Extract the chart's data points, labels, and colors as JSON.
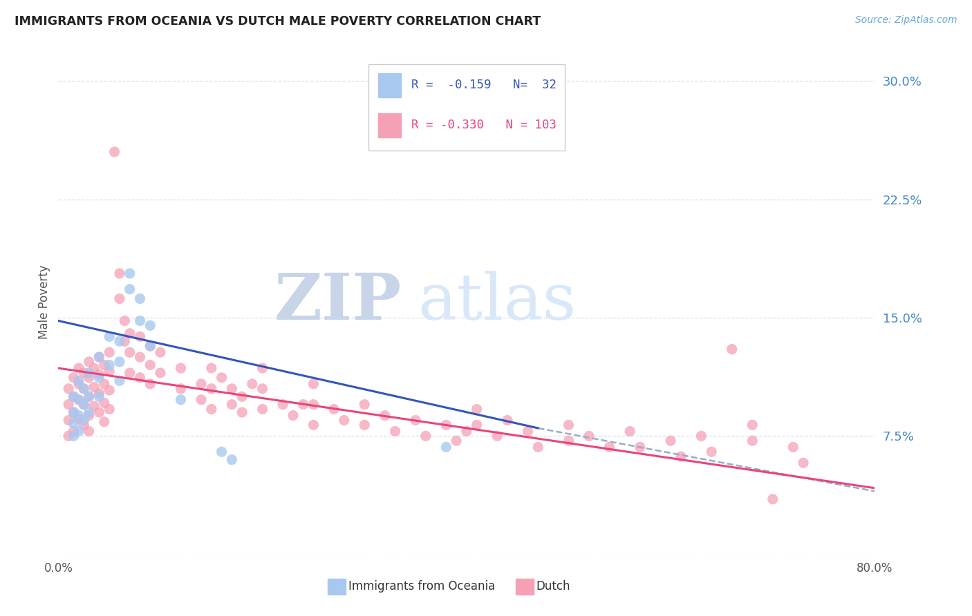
{
  "title": "IMMIGRANTS FROM OCEANIA VS DUTCH MALE POVERTY CORRELATION CHART",
  "source": "Source: ZipAtlas.com",
  "ylabel": "Male Poverty",
  "yticks": [
    0.0,
    0.075,
    0.15,
    0.225,
    0.3
  ],
  "ytick_labels": [
    "",
    "7.5%",
    "15.0%",
    "22.5%",
    "30.0%"
  ],
  "xlim": [
    0.0,
    0.8
  ],
  "ylim": [
    0.0,
    0.32
  ],
  "color_blue": "#A8C8F0",
  "color_pink": "#F5A0B5",
  "line_blue": "#3355BB",
  "line_pink": "#E8457A",
  "line_dashed_color": "#99AACC",
  "watermark": "ZIPatlas",
  "watermark_color": "#D8E4F5",
  "blue_line_x": [
    0.0,
    0.47
  ],
  "blue_line_y": [
    0.148,
    0.08
  ],
  "pink_line_x": [
    0.0,
    0.8
  ],
  "pink_line_y": [
    0.118,
    0.042
  ],
  "dashed_line_x": [
    0.47,
    0.8
  ],
  "dashed_line_y": [
    0.08,
    0.04
  ],
  "scatter_blue": [
    [
      0.015,
      0.1
    ],
    [
      0.015,
      0.09
    ],
    [
      0.015,
      0.083
    ],
    [
      0.015,
      0.075
    ],
    [
      0.02,
      0.11
    ],
    [
      0.02,
      0.098
    ],
    [
      0.02,
      0.088
    ],
    [
      0.02,
      0.078
    ],
    [
      0.025,
      0.105
    ],
    [
      0.025,
      0.095
    ],
    [
      0.025,
      0.085
    ],
    [
      0.03,
      0.115
    ],
    [
      0.03,
      0.1
    ],
    [
      0.03,
      0.09
    ],
    [
      0.04,
      0.125
    ],
    [
      0.04,
      0.112
    ],
    [
      0.04,
      0.1
    ],
    [
      0.05,
      0.138
    ],
    [
      0.05,
      0.12
    ],
    [
      0.06,
      0.135
    ],
    [
      0.06,
      0.122
    ],
    [
      0.06,
      0.11
    ],
    [
      0.07,
      0.178
    ],
    [
      0.07,
      0.168
    ],
    [
      0.08,
      0.162
    ],
    [
      0.08,
      0.148
    ],
    [
      0.09,
      0.145
    ],
    [
      0.09,
      0.132
    ],
    [
      0.12,
      0.098
    ],
    [
      0.16,
      0.065
    ],
    [
      0.17,
      0.06
    ],
    [
      0.38,
      0.068
    ]
  ],
  "scatter_pink": [
    [
      0.01,
      0.105
    ],
    [
      0.01,
      0.095
    ],
    [
      0.01,
      0.085
    ],
    [
      0.01,
      0.075
    ],
    [
      0.015,
      0.112
    ],
    [
      0.015,
      0.1
    ],
    [
      0.015,
      0.09
    ],
    [
      0.015,
      0.078
    ],
    [
      0.02,
      0.118
    ],
    [
      0.02,
      0.108
    ],
    [
      0.02,
      0.098
    ],
    [
      0.02,
      0.086
    ],
    [
      0.025,
      0.115
    ],
    [
      0.025,
      0.105
    ],
    [
      0.025,
      0.095
    ],
    [
      0.025,
      0.082
    ],
    [
      0.03,
      0.122
    ],
    [
      0.03,
      0.112
    ],
    [
      0.03,
      0.1
    ],
    [
      0.03,
      0.088
    ],
    [
      0.03,
      0.078
    ],
    [
      0.035,
      0.118
    ],
    [
      0.035,
      0.106
    ],
    [
      0.035,
      0.094
    ],
    [
      0.04,
      0.125
    ],
    [
      0.04,
      0.114
    ],
    [
      0.04,
      0.102
    ],
    [
      0.04,
      0.09
    ],
    [
      0.045,
      0.12
    ],
    [
      0.045,
      0.108
    ],
    [
      0.045,
      0.096
    ],
    [
      0.045,
      0.084
    ],
    [
      0.05,
      0.128
    ],
    [
      0.05,
      0.116
    ],
    [
      0.05,
      0.104
    ],
    [
      0.05,
      0.092
    ],
    [
      0.055,
      0.255
    ],
    [
      0.06,
      0.178
    ],
    [
      0.06,
      0.162
    ],
    [
      0.065,
      0.148
    ],
    [
      0.065,
      0.135
    ],
    [
      0.07,
      0.14
    ],
    [
      0.07,
      0.128
    ],
    [
      0.07,
      0.115
    ],
    [
      0.08,
      0.138
    ],
    [
      0.08,
      0.125
    ],
    [
      0.08,
      0.112
    ],
    [
      0.09,
      0.132
    ],
    [
      0.09,
      0.12
    ],
    [
      0.09,
      0.108
    ],
    [
      0.1,
      0.128
    ],
    [
      0.1,
      0.115
    ],
    [
      0.12,
      0.118
    ],
    [
      0.12,
      0.105
    ],
    [
      0.14,
      0.108
    ],
    [
      0.14,
      0.098
    ],
    [
      0.15,
      0.118
    ],
    [
      0.15,
      0.105
    ],
    [
      0.15,
      0.092
    ],
    [
      0.16,
      0.112
    ],
    [
      0.17,
      0.105
    ],
    [
      0.17,
      0.095
    ],
    [
      0.18,
      0.1
    ],
    [
      0.18,
      0.09
    ],
    [
      0.19,
      0.108
    ],
    [
      0.2,
      0.118
    ],
    [
      0.2,
      0.105
    ],
    [
      0.2,
      0.092
    ],
    [
      0.22,
      0.095
    ],
    [
      0.23,
      0.088
    ],
    [
      0.24,
      0.095
    ],
    [
      0.25,
      0.108
    ],
    [
      0.25,
      0.095
    ],
    [
      0.25,
      0.082
    ],
    [
      0.27,
      0.092
    ],
    [
      0.28,
      0.085
    ],
    [
      0.3,
      0.095
    ],
    [
      0.3,
      0.082
    ],
    [
      0.32,
      0.088
    ],
    [
      0.33,
      0.078
    ],
    [
      0.35,
      0.085
    ],
    [
      0.36,
      0.075
    ],
    [
      0.38,
      0.082
    ],
    [
      0.39,
      0.072
    ],
    [
      0.4,
      0.078
    ],
    [
      0.41,
      0.092
    ],
    [
      0.41,
      0.082
    ],
    [
      0.43,
      0.075
    ],
    [
      0.44,
      0.085
    ],
    [
      0.46,
      0.078
    ],
    [
      0.47,
      0.068
    ],
    [
      0.5,
      0.082
    ],
    [
      0.5,
      0.072
    ],
    [
      0.52,
      0.075
    ],
    [
      0.54,
      0.068
    ],
    [
      0.56,
      0.078
    ],
    [
      0.57,
      0.068
    ],
    [
      0.6,
      0.072
    ],
    [
      0.61,
      0.062
    ],
    [
      0.63,
      0.075
    ],
    [
      0.64,
      0.065
    ],
    [
      0.66,
      0.13
    ],
    [
      0.68,
      0.082
    ],
    [
      0.68,
      0.072
    ],
    [
      0.7,
      0.035
    ],
    [
      0.72,
      0.068
    ],
    [
      0.73,
      0.058
    ]
  ]
}
